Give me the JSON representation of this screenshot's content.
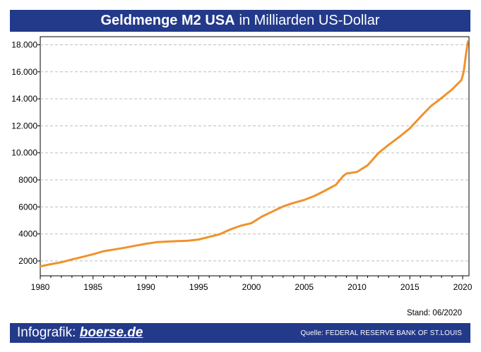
{
  "header": {
    "title_bold": "Geldmenge M2 USA",
    "title_rest": "in Milliarden US-Dollar"
  },
  "stand": "Stand: 06/2020",
  "footer": {
    "brand_prefix": "Infografik:",
    "brand_site": "boerse.de",
    "source": "Quelle: FEDERAL RESERVE BANK OF ST.LOUIS"
  },
  "colors": {
    "line": "#f0922b",
    "banner": "#233a8a",
    "grid": "#bdbdbd"
  },
  "chart_data": {
    "type": "line",
    "title": "Geldmenge M2 USA in Milliarden US-Dollar",
    "xlabel": "",
    "ylabel": "",
    "xlim": [
      1980,
      2020.6
    ],
    "ylim": [
      900,
      18600
    ],
    "x_ticks": [
      1980,
      1985,
      1990,
      1995,
      2000,
      2005,
      2010,
      2015,
      2020
    ],
    "x_tick_labels": [
      "1980",
      "1985",
      "1990",
      "1995",
      "2000",
      "2005",
      "2010",
      "2015",
      "2020"
    ],
    "y_ticks": [
      2000,
      4000,
      6000,
      8000,
      10000,
      12000,
      14000,
      16000,
      18000
    ],
    "y_tick_labels": [
      "2000",
      "4000",
      "6000",
      "8000",
      "10.000",
      "12.000",
      "14.000",
      "16.000",
      "18.000"
    ],
    "grid": "horizontal dashed",
    "series": [
      {
        "name": "M2",
        "x": [
          1980,
          1981,
          1982,
          1983,
          1984,
          1985,
          1986,
          1987,
          1988,
          1989,
          1990,
          1991,
          1992,
          1993,
          1994,
          1995,
          1996,
          1997,
          1998,
          1999,
          2000,
          2001,
          2002,
          2003,
          2004,
          2005,
          2006,
          2007,
          2008,
          2008.7,
          2009,
          2010,
          2011,
          2011.6,
          2012,
          2013,
          2014,
          2015,
          2016,
          2017,
          2018,
          2019,
          2019.9,
          2020.1,
          2020.3,
          2020.5
        ],
        "y": [
          1600,
          1760,
          1900,
          2110,
          2300,
          2500,
          2720,
          2850,
          2980,
          3130,
          3270,
          3390,
          3430,
          3470,
          3500,
          3590,
          3780,
          3980,
          4330,
          4610,
          4800,
          5290,
          5660,
          6040,
          6300,
          6520,
          6820,
          7220,
          7640,
          8300,
          8470,
          8590,
          9080,
          9600,
          9970,
          10600,
          11180,
          11820,
          12660,
          13470,
          14060,
          14700,
          15400,
          16000,
          17200,
          18250
        ]
      }
    ]
  }
}
